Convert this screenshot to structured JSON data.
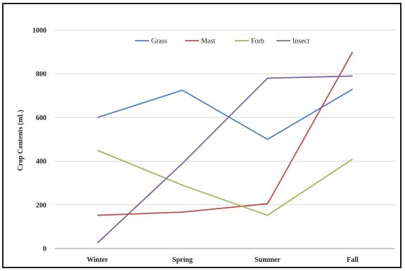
{
  "chart_data": {
    "type": "line",
    "title": "",
    "xlabel": "",
    "ylabel": "Crop Contents (mL)",
    "categories": [
      "Winter",
      "Spring",
      "Summer",
      "Fall"
    ],
    "ylim": [
      0,
      1000
    ],
    "yticks": [
      0,
      200,
      400,
      600,
      800,
      1000
    ],
    "grid": true,
    "legend": "top",
    "series": [
      {
        "name": "Grass",
        "color": "#4f81bd",
        "values": [
          600,
          725,
          500,
          730
        ]
      },
      {
        "name": "Mast",
        "color": "#c0504d",
        "values": [
          152,
          167,
          205,
          900
        ]
      },
      {
        "name": "Forb",
        "color": "#9bbb59",
        "values": [
          450,
          290,
          152,
          410
        ]
      },
      {
        "name": "Insect",
        "color": "#8064a2",
        "values": [
          25,
          390,
          780,
          790
        ]
      }
    ]
  }
}
